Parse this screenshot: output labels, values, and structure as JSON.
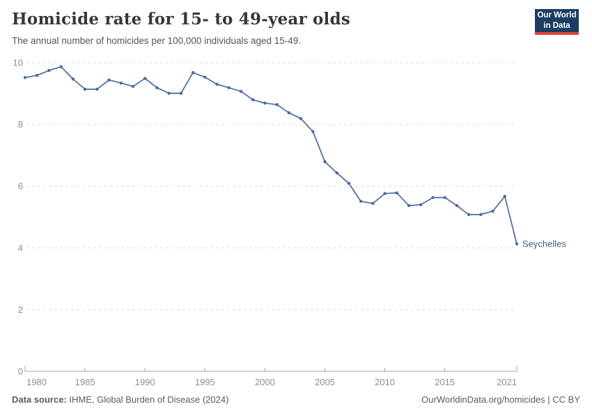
{
  "chart_data": {
    "type": "line",
    "title": "Homicide rate for 15- to 49-year olds",
    "subtitle": "The annual number of homicides per 100,000 individuals aged 15-49.",
    "entity_label": "Seychelles",
    "x": [
      1980,
      1981,
      1982,
      1983,
      1984,
      1985,
      1986,
      1987,
      1988,
      1989,
      1990,
      1991,
      1992,
      1993,
      1994,
      1995,
      1996,
      1997,
      1998,
      1999,
      2000,
      2001,
      2002,
      2003,
      2004,
      2005,
      2006,
      2007,
      2008,
      2009,
      2010,
      2011,
      2012,
      2013,
      2014,
      2015,
      2016,
      2017,
      2018,
      2019,
      2020,
      2021
    ],
    "series": [
      {
        "name": "Seychelles",
        "color": "#4c6a9c",
        "label_color": "#3d5c8f",
        "values": [
          9.52,
          9.59,
          9.75,
          9.87,
          9.47,
          9.14,
          9.14,
          9.44,
          9.34,
          9.23,
          9.49,
          9.19,
          9.01,
          9.01,
          9.68,
          9.53,
          9.3,
          9.19,
          9.07,
          8.8,
          8.69,
          8.64,
          8.38,
          8.19,
          7.77,
          6.79,
          6.43,
          6.09,
          5.51,
          5.44,
          5.76,
          5.78,
          5.37,
          5.4,
          5.63,
          5.63,
          5.37,
          5.08,
          5.08,
          5.19,
          5.67,
          4.13
        ]
      }
    ],
    "xlabel": "",
    "ylabel": "",
    "ylim": [
      0,
      10
    ],
    "yticks": [
      0,
      2,
      4,
      6,
      8,
      10
    ],
    "xticks": [
      1980,
      1985,
      1990,
      1995,
      2000,
      2005,
      2010,
      2015,
      2021
    ],
    "grid": "horizontal dashed",
    "legend_position": "line-end label",
    "axis_color": "#a3a3a3",
    "gridline_color": "#dedede",
    "tick_label_color": "#8e8e8e"
  },
  "logo": {
    "line1": "Our World",
    "line2": "in Data",
    "bg_color": "#1d3d63",
    "accent_color": "#e0413c"
  },
  "footer": {
    "source_label": "Data source:",
    "source_text": "IHME, Global Burden of Disease (2024)",
    "right_text": "OurWorldinData.org/homicides | CC BY"
  }
}
